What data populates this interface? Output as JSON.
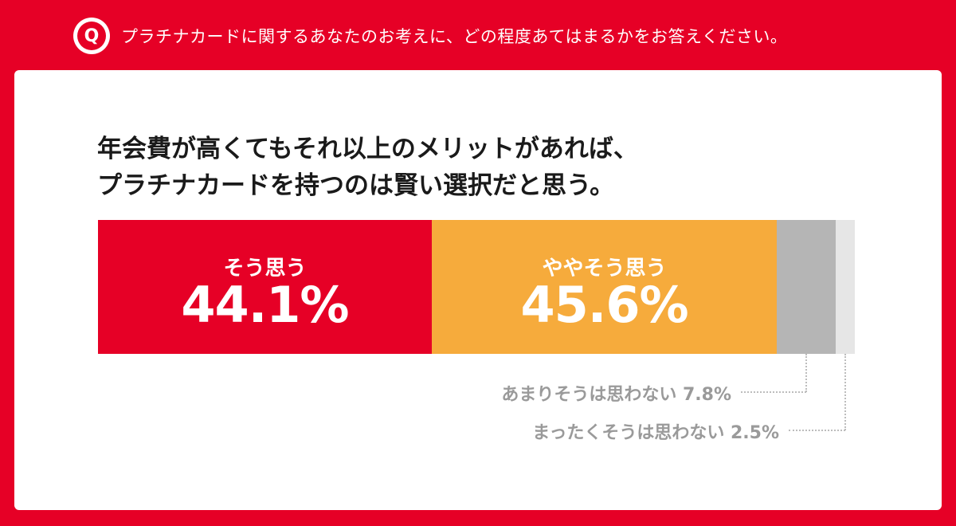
{
  "question": {
    "badge": "Q",
    "text": "プラチナカードに関するあなたのお考えに、どの程度あてはまるかをお答えください。"
  },
  "title_lines": [
    "年会費が高くてもそれ以上のメリットがあれば、",
    "プラチナカードを持つのは賢い選択だと思う。"
  ],
  "colors": {
    "brand_red": "#e60026",
    "agree": "#e60026",
    "somewhat_agree": "#f6ab3c",
    "somewhat_disagree": "#b5b5b5",
    "disagree": "#e6e6e6"
  },
  "chart_data": {
    "type": "bar",
    "orientation": "horizontal-stacked-100",
    "title": "年会費が高くてもそれ以上のメリットがあれば、プラチナカードを持つのは賢い選択だと思う。",
    "series": [
      {
        "name": "そう思う",
        "value": 44.1,
        "display": "44.1%",
        "color": "#e60026"
      },
      {
        "name": "ややそう思う",
        "value": 45.6,
        "display": "45.6%",
        "color": "#f6ab3c"
      },
      {
        "name": "あまりそうは思わない",
        "value": 7.8,
        "display": "7.8%",
        "color": "#b5b5b5"
      },
      {
        "name": "まったくそうは思わない",
        "value": 2.5,
        "display": "2.5%",
        "color": "#e6e6e6"
      }
    ]
  }
}
